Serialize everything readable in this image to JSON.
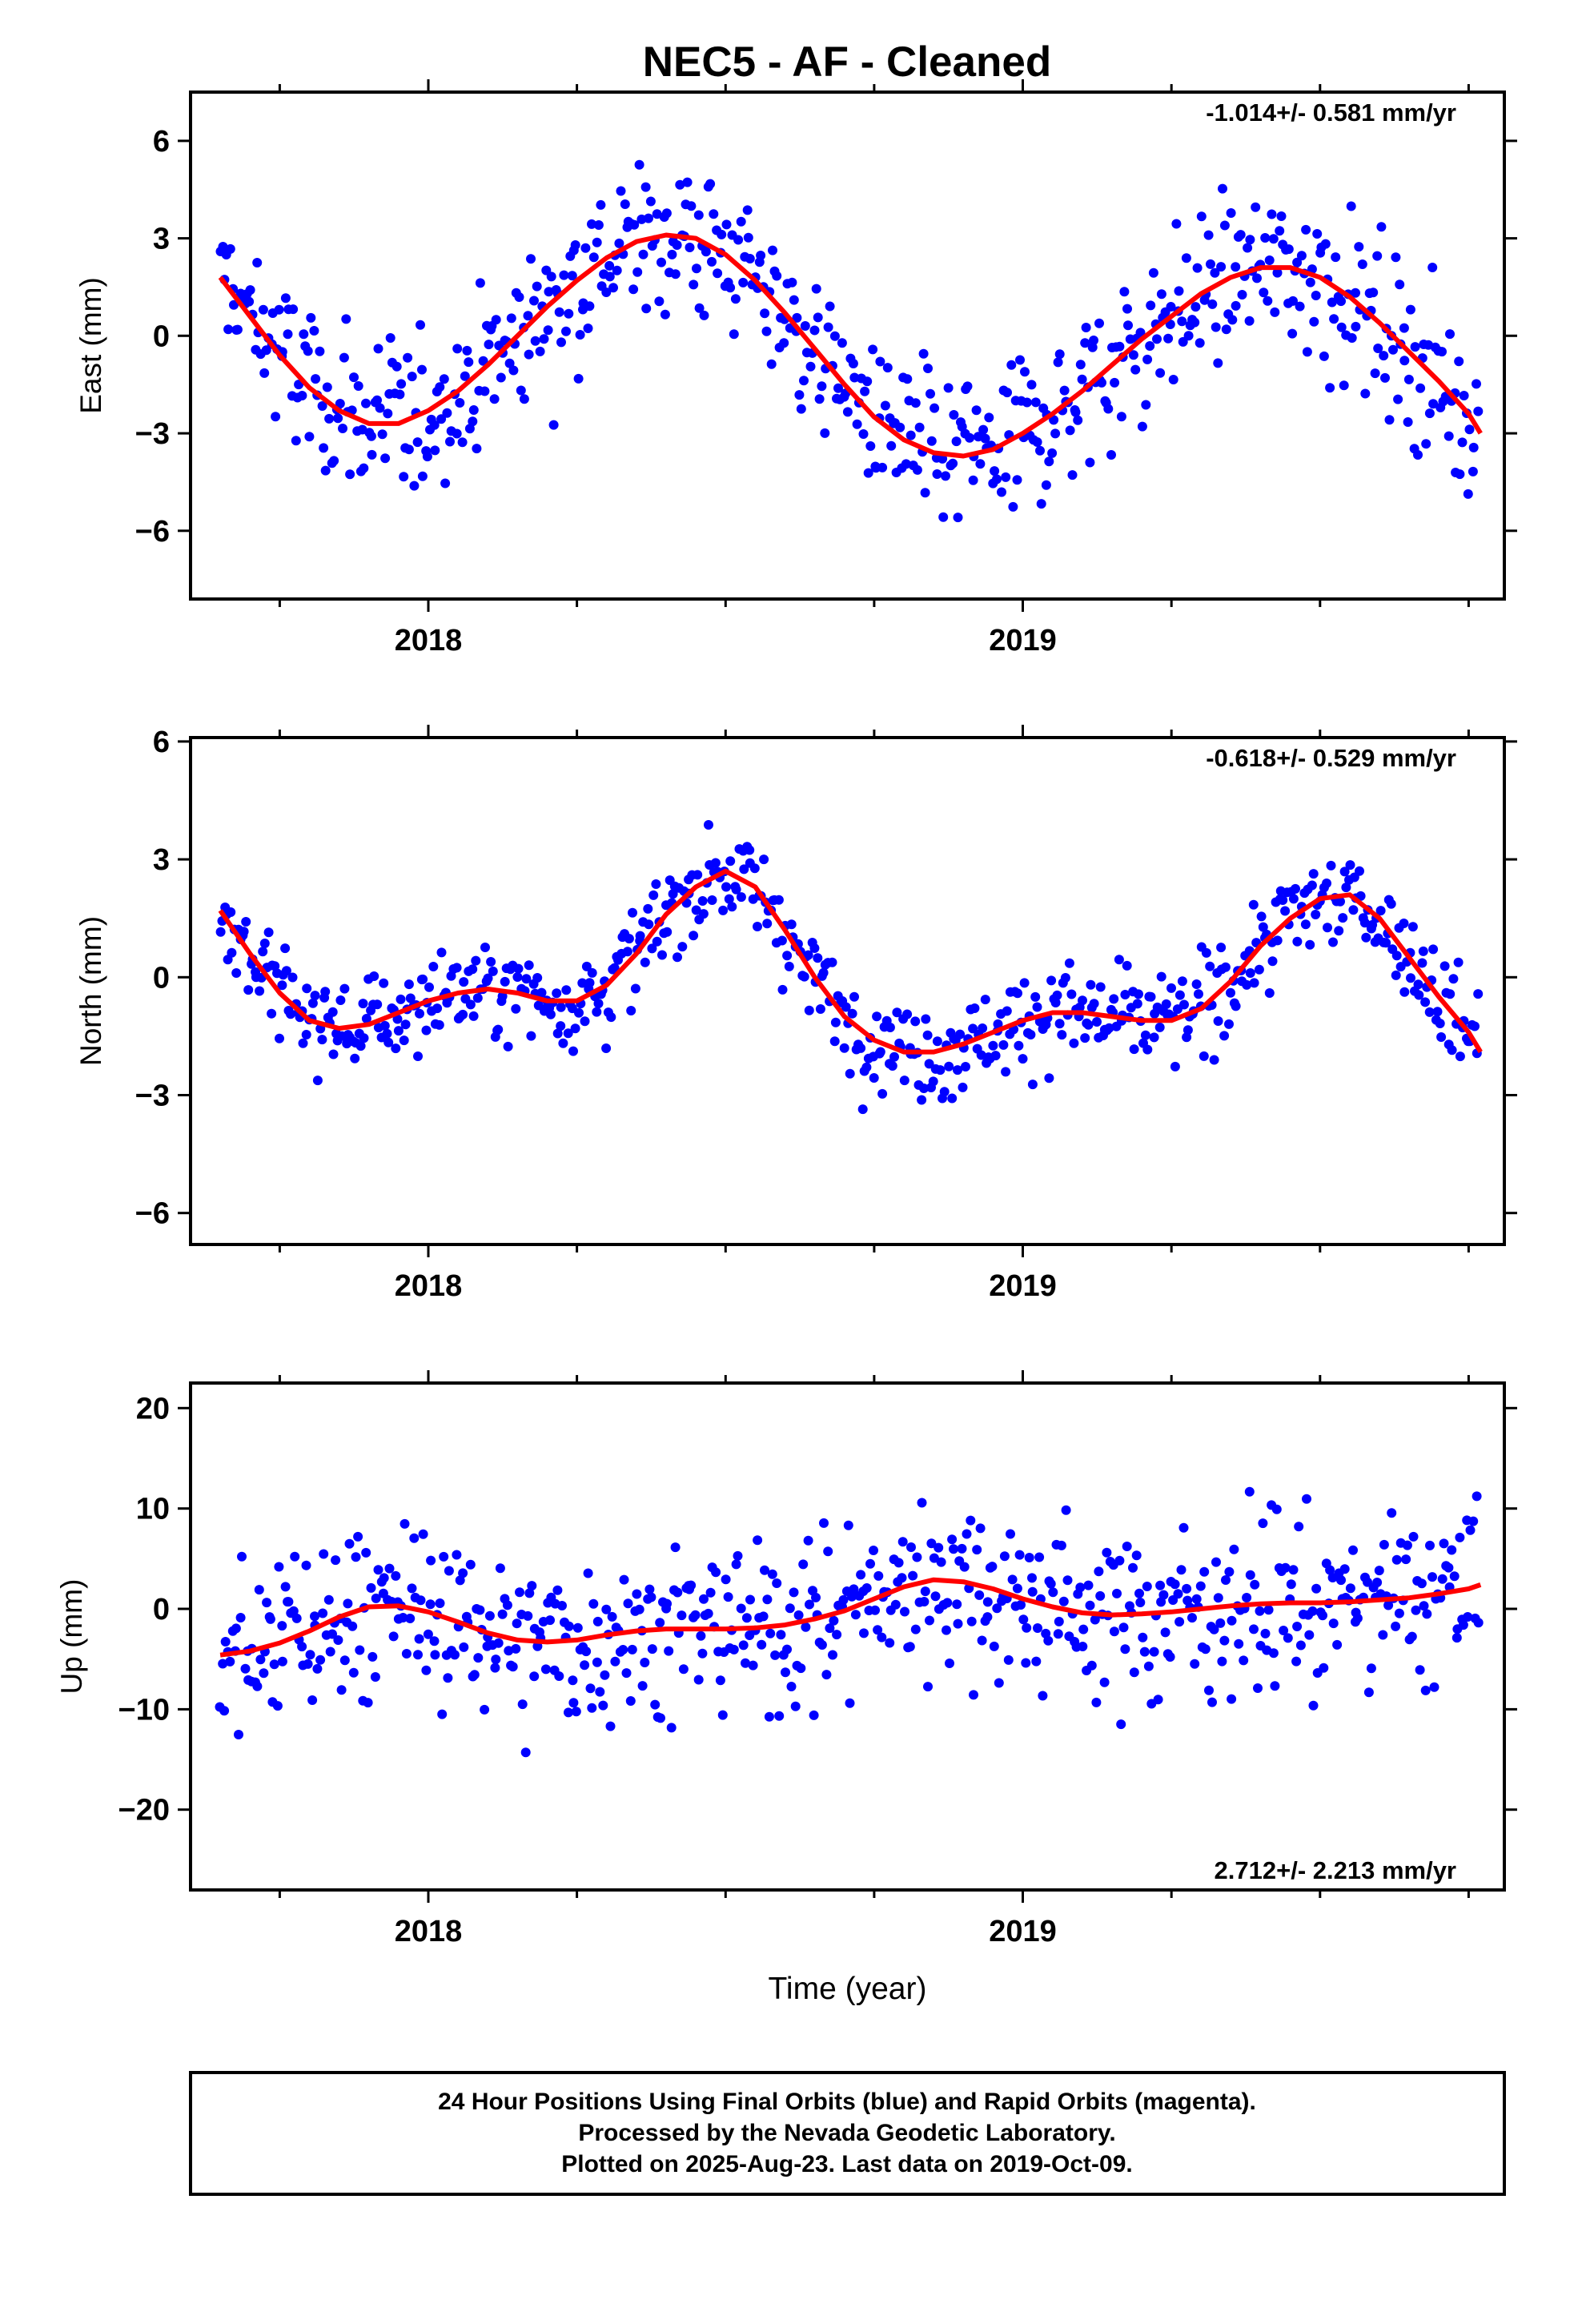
{
  "title": "NEC5  - AF - Cleaned",
  "footer": {
    "line1": "24 Hour Positions Using Final Orbits (blue) and Rapid Orbits (magenta).",
    "line2": "Processed by the Nevada Geodetic Laboratory.",
    "line3": "Plotted on 2025-Aug-23. Last data on 2019-Oct-09."
  },
  "colors": {
    "points": "#0000ff",
    "fit": "#ff0000",
    "frame": "#000000"
  },
  "chart_data": [
    {
      "type": "scatter",
      "ylabel": "East (mm)",
      "xlabel": "",
      "rate_text": "-1.014+/- 0.581 mm/yr",
      "rate_position": "top-right",
      "xlim": [
        2017.6,
        2019.81
      ],
      "ylim": [
        -8.1,
        7.5
      ],
      "x_ticks": [
        2018,
        2019
      ],
      "x_tick_labels": [
        "2018",
        "2019"
      ],
      "y_ticks": [
        -6,
        -3,
        0,
        3,
        6
      ],
      "y_tick_labels": [
        "−6",
        "−3",
        "0",
        "3",
        "6"
      ],
      "series": [
        {
          "kind": "points",
          "note": "daily positions (blue dots), approx. 3.5 mm scatter about fit"
        },
        {
          "kind": "line",
          "x": [
            2017.65,
            2017.7,
            2017.75,
            2017.8,
            2017.85,
            2017.9,
            2017.95,
            2018.0,
            2018.05,
            2018.1,
            2018.15,
            2018.2,
            2018.25,
            2018.3,
            2018.35,
            2018.4,
            2018.45,
            2018.5,
            2018.55,
            2018.6,
            2018.65,
            2018.7,
            2018.75,
            2018.8,
            2018.85,
            2018.9,
            2018.95,
            2019.0,
            2019.05,
            2019.1,
            2019.15,
            2019.2,
            2019.25,
            2019.3,
            2019.35,
            2019.4,
            2019.45,
            2019.5,
            2019.55,
            2019.6,
            2019.65,
            2019.7,
            2019.75,
            2019.77
          ],
          "values": [
            1.8,
            0.6,
            -0.6,
            -1.6,
            -2.3,
            -2.7,
            -2.7,
            -2.3,
            -1.7,
            -0.9,
            0.0,
            0.9,
            1.7,
            2.4,
            2.9,
            3.1,
            3.0,
            2.5,
            1.7,
            0.7,
            -0.4,
            -1.5,
            -2.5,
            -3.2,
            -3.6,
            -3.7,
            -3.5,
            -3.0,
            -2.4,
            -1.7,
            -0.9,
            -0.1,
            0.6,
            1.3,
            1.8,
            2.1,
            2.1,
            1.8,
            1.2,
            0.4,
            -0.5,
            -1.4,
            -2.4,
            -3.0
          ]
        }
      ]
    },
    {
      "type": "scatter",
      "ylabel": "North (mm)",
      "xlabel": "",
      "rate_text": "-0.618+/- 0.529 mm/yr",
      "rate_position": "top-right",
      "xlim": [
        2017.6,
        2019.81
      ],
      "ylim": [
        -6.8,
        6.1
      ],
      "x_ticks": [
        2018,
        2019
      ],
      "x_tick_labels": [
        "2018",
        "2019"
      ],
      "y_ticks": [
        -6,
        -3,
        0,
        3,
        6
      ],
      "y_tick_labels": [
        "−6",
        "−3",
        "0",
        "3",
        "6"
      ],
      "series": [
        {
          "kind": "points",
          "note": "daily positions (blue dots), approx. 1.7 mm scatter about fit"
        },
        {
          "kind": "line",
          "x": [
            2017.65,
            2017.7,
            2017.75,
            2017.8,
            2017.85,
            2017.9,
            2017.95,
            2018.0,
            2018.05,
            2018.1,
            2018.15,
            2018.2,
            2018.25,
            2018.3,
            2018.35,
            2018.4,
            2018.45,
            2018.5,
            2018.55,
            2018.6,
            2018.65,
            2018.7,
            2018.75,
            2018.8,
            2018.85,
            2018.9,
            2018.95,
            2019.0,
            2019.05,
            2019.1,
            2019.15,
            2019.2,
            2019.25,
            2019.3,
            2019.35,
            2019.4,
            2019.45,
            2019.5,
            2019.55,
            2019.6,
            2019.65,
            2019.7,
            2019.75,
            2019.77
          ],
          "values": [
            1.7,
            0.6,
            -0.4,
            -1.1,
            -1.3,
            -1.2,
            -0.9,
            -0.6,
            -0.4,
            -0.3,
            -0.4,
            -0.6,
            -0.6,
            -0.2,
            0.6,
            1.6,
            2.3,
            2.7,
            2.3,
            1.2,
            0.0,
            -1.0,
            -1.6,
            -1.9,
            -1.9,
            -1.7,
            -1.4,
            -1.1,
            -0.9,
            -0.9,
            -1.0,
            -1.1,
            -1.1,
            -0.8,
            -0.1,
            0.8,
            1.5,
            2.0,
            2.1,
            1.5,
            0.5,
            -0.5,
            -1.4,
            -1.9
          ]
        }
      ]
    },
    {
      "type": "scatter",
      "ylabel": "Up (mm)",
      "xlabel": "Time (year)",
      "rate_text": "2.712+/- 2.213 mm/yr",
      "rate_position": "bottom-right",
      "xlim": [
        2017.6,
        2019.81
      ],
      "ylim": [
        -28,
        22.5
      ],
      "x_ticks": [
        2018,
        2019
      ],
      "x_tick_labels": [
        "2018",
        "2019"
      ],
      "y_ticks": [
        -20,
        -10,
        0,
        10,
        20
      ],
      "y_tick_labels": [
        "−20",
        "−10",
        "0",
        "10",
        "20"
      ],
      "series": [
        {
          "kind": "points",
          "note": "daily positions (blue dots), approx. 12 mm scatter about fit"
        },
        {
          "kind": "line",
          "x": [
            2017.65,
            2017.7,
            2017.75,
            2017.8,
            2017.85,
            2017.9,
            2017.95,
            2018.0,
            2018.05,
            2018.1,
            2018.15,
            2018.2,
            2018.25,
            2018.3,
            2018.35,
            2018.4,
            2018.45,
            2018.5,
            2018.55,
            2018.6,
            2018.65,
            2018.7,
            2018.75,
            2018.8,
            2018.85,
            2018.9,
            2018.95,
            2019.0,
            2019.05,
            2019.1,
            2019.15,
            2019.2,
            2019.25,
            2019.3,
            2019.35,
            2019.4,
            2019.45,
            2019.5,
            2019.55,
            2019.6,
            2019.65,
            2019.7,
            2019.75,
            2019.77
          ],
          "values": [
            -4.6,
            -4.2,
            -3.4,
            -2.2,
            -0.8,
            0.2,
            0.3,
            -0.3,
            -1.3,
            -2.4,
            -3.1,
            -3.3,
            -3.1,
            -2.6,
            -2.2,
            -2.0,
            -2.0,
            -2.0,
            -1.9,
            -1.6,
            -1.0,
            -0.2,
            1.0,
            2.2,
            2.9,
            2.7,
            2.0,
            1.0,
            0.2,
            -0.4,
            -0.6,
            -0.5,
            -0.3,
            0.0,
            0.3,
            0.5,
            0.6,
            0.6,
            0.7,
            0.9,
            1.1,
            1.5,
            2.0,
            2.4
          ]
        }
      ]
    }
  ]
}
